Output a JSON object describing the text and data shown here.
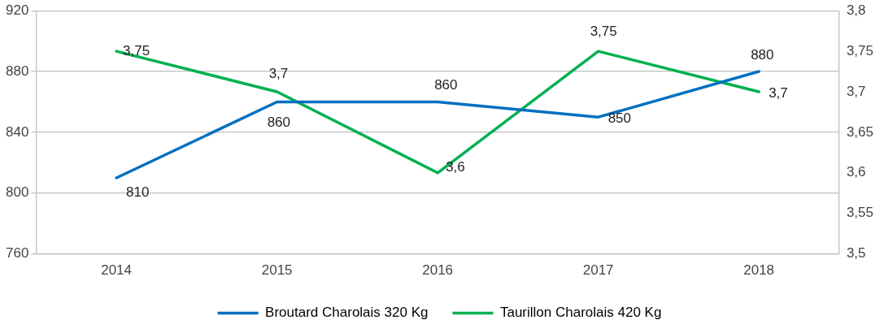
{
  "chart_data": {
    "type": "line",
    "categories": [
      "2014",
      "2015",
      "2016",
      "2017",
      "2018"
    ],
    "series": [
      {
        "name": "Broutard Charolais 320 Kg",
        "color": "#0070c0",
        "values": [
          810,
          860,
          860,
          850,
          880
        ],
        "value_labels": [
          "810",
          "860",
          "860",
          "850",
          "880"
        ]
      },
      {
        "name": "Taurillon Charolais 420 Kg",
        "color": "#00b050",
        "axis": "y2",
        "values": [
          3.75,
          3.7,
          3.6,
          3.75,
          3.7
        ],
        "value_labels": [
          "3,75",
          "3,7",
          "3,6",
          "3,75",
          "3,7"
        ]
      }
    ],
    "ylim": [
      760,
      920
    ],
    "yticks": [
      760,
      800,
      840,
      880,
      920
    ],
    "y2lim": [
      3.5,
      3.8
    ],
    "y2ticks": [
      {
        "value": 3.5,
        "label": "3,5"
      },
      {
        "value": 3.55,
        "label": "3,55"
      },
      {
        "value": 3.6,
        "label": "3,6"
      },
      {
        "value": 3.65,
        "label": "3,65"
      },
      {
        "value": 3.7,
        "label": "3,7"
      },
      {
        "value": 3.75,
        "label": "3,75"
      },
      {
        "value": 3.8,
        "label": "3,8"
      }
    ],
    "grid": "y",
    "legend": "bottom",
    "marker": "none",
    "line_style": "solid"
  }
}
